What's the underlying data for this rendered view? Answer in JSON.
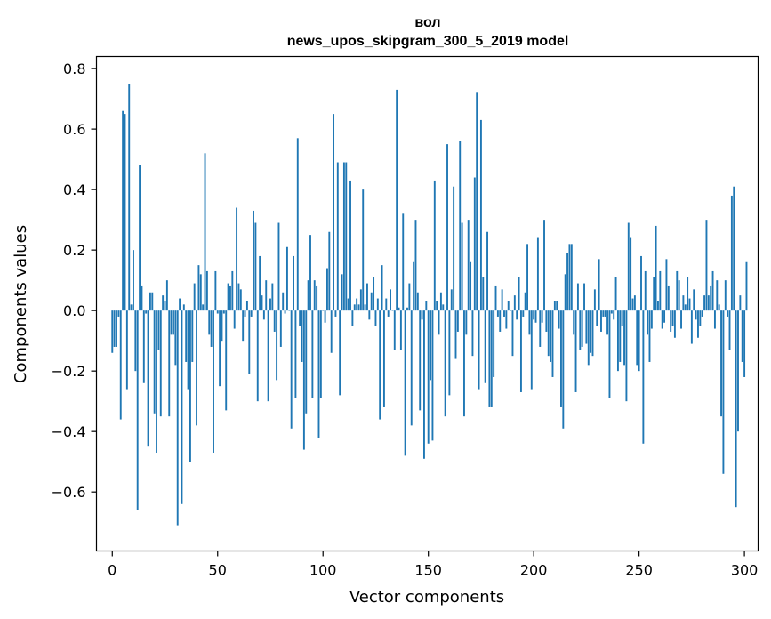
{
  "chart_data": {
    "type": "bar",
    "title": "вол",
    "subtitle": "news_upos_skipgram_300_5_2019 model",
    "xlabel": "Vector components",
    "ylabel": "Components values",
    "xlim": [
      -7.5,
      306.5
    ],
    "ylim": [
      -0.795,
      0.84
    ],
    "x_ticks": [
      0,
      50,
      100,
      150,
      200,
      250,
      300
    ],
    "x_tick_labels": [
      "0",
      "50",
      "100",
      "150",
      "200",
      "250",
      "300"
    ],
    "y_ticks": [
      -0.6,
      -0.4,
      -0.2,
      0.0,
      0.2,
      0.4,
      0.6,
      0.8
    ],
    "y_tick_labels": [
      "−0.6",
      "−0.4",
      "−0.2",
      "0.0",
      "0.2",
      "0.4",
      "0.6",
      "0.8"
    ],
    "grid": false,
    "legend": "none",
    "bar_color": "#1f77b4",
    "values": [
      -0.14,
      -0.12,
      -0.12,
      -0.02,
      -0.36,
      0.66,
      0.65,
      -0.26,
      0.75,
      0.02,
      0.2,
      -0.2,
      -0.66,
      0.48,
      0.08,
      -0.24,
      -0.01,
      -0.45,
      0.06,
      0.06,
      -0.34,
      -0.47,
      -0.13,
      -0.35,
      0.05,
      0.03,
      0.1,
      -0.35,
      -0.08,
      -0.08,
      -0.18,
      -0.71,
      0.04,
      -0.64,
      0.02,
      -0.17,
      -0.26,
      -0.5,
      -0.17,
      0.09,
      -0.38,
      0.15,
      0.12,
      0.02,
      0.52,
      0.13,
      -0.08,
      -0.12,
      -0.47,
      0.13,
      -0.01,
      -0.25,
      -0.1,
      -0.01,
      -0.33,
      0.09,
      0.08,
      0.13,
      -0.06,
      0.34,
      0.09,
      0.07,
      -0.1,
      -0.02,
      0.03,
      -0.21,
      -0.02,
      0.33,
      0.29,
      -0.3,
      0.18,
      0.05,
      -0.03,
      0.1,
      -0.3,
      0.04,
      0.09,
      -0.07,
      -0.23,
      0.29,
      -0.12,
      0.06,
      -0.01,
      0.21,
      0.0,
      -0.39,
      0.18,
      -0.29,
      0.57,
      -0.05,
      -0.17,
      -0.46,
      -0.34,
      0.1,
      0.25,
      -0.29,
      0.1,
      0.08,
      -0.42,
      -0.29,
      0.0,
      -0.04,
      0.14,
      0.26,
      -0.14,
      0.65,
      -0.02,
      0.49,
      -0.28,
      0.12,
      0.49,
      0.49,
      0.04,
      0.43,
      -0.05,
      0.02,
      0.04,
      0.02,
      0.07,
      0.4,
      0.02,
      0.09,
      -0.03,
      0.06,
      0.11,
      -0.05,
      0.04,
      -0.36,
      0.15,
      -0.32,
      0.04,
      -0.02,
      0.07,
      0.0,
      -0.13,
      0.73,
      0.01,
      -0.13,
      0.32,
      -0.48,
      0.01,
      0.09,
      -0.38,
      0.16,
      0.3,
      0.06,
      -0.33,
      -0.03,
      -0.49,
      0.03,
      -0.44,
      -0.23,
      -0.43,
      0.43,
      0.03,
      -0.08,
      0.06,
      0.02,
      -0.35,
      0.55,
      -0.28,
      0.07,
      0.41,
      -0.16,
      -0.07,
      0.56,
      0.29,
      -0.35,
      -0.08,
      0.3,
      0.16,
      -0.15,
      0.44,
      0.72,
      -0.26,
      0.63,
      0.11,
      -0.24,
      0.26,
      -0.32,
      -0.32,
      -0.22,
      0.08,
      -0.02,
      -0.07,
      0.07,
      -0.02,
      -0.06,
      0.03,
      0.0,
      -0.15,
      0.05,
      -0.03,
      0.11,
      -0.27,
      -0.02,
      0.06,
      0.22,
      -0.08,
      -0.26,
      -0.03,
      -0.04,
      0.24,
      -0.12,
      -0.04,
      0.3,
      -0.07,
      -0.15,
      -0.17,
      -0.22,
      0.03,
      0.03,
      -0.06,
      -0.32,
      -0.39,
      0.12,
      0.19,
      0.22,
      0.22,
      -0.08,
      -0.27,
      0.09,
      -0.13,
      -0.12,
      0.09,
      -0.11,
      -0.18,
      -0.14,
      -0.15,
      0.07,
      -0.05,
      0.17,
      -0.07,
      -0.02,
      -0.02,
      -0.08,
      -0.29,
      -0.01,
      -0.03,
      0.11,
      -0.2,
      -0.17,
      -0.05,
      -0.18,
      -0.3,
      0.29,
      0.24,
      0.04,
      0.05,
      -0.18,
      -0.2,
      0.18,
      -0.44,
      0.13,
      -0.08,
      -0.17,
      -0.06,
      0.11,
      0.28,
      0.03,
      0.13,
      -0.06,
      -0.04,
      0.17,
      0.08,
      -0.07,
      -0.05,
      -0.09,
      0.13,
      0.1,
      -0.06,
      0.05,
      0.02,
      0.11,
      0.04,
      -0.11,
      0.07,
      -0.03,
      -0.09,
      -0.05,
      -0.02,
      0.05,
      0.3,
      0.05,
      0.08,
      0.13,
      -0.06,
      0.1,
      0.02,
      -0.35,
      -0.54,
      0.1,
      -0.02,
      -0.13,
      0.38,
      0.41,
      -0.65,
      -0.4,
      0.05,
      -0.17,
      -0.22,
      0.16
    ]
  }
}
